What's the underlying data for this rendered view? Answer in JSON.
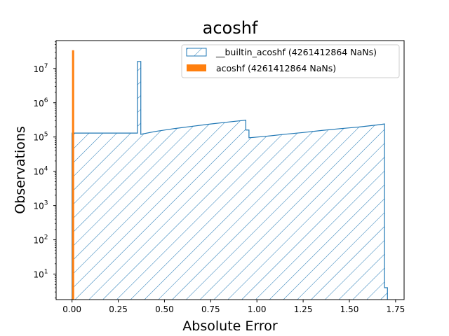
{
  "chart_data": {
    "type": "histogram",
    "title": "acoshf",
    "xlabel": "Absolute Error",
    "ylabel": "Observations",
    "yscale": "log",
    "xlim": [
      -0.086,
      1.796
    ],
    "ylim": [
      1.8,
      65000000
    ],
    "xticks": [
      "0.00",
      "0.25",
      "0.50",
      "0.75",
      "1.00",
      "1.25",
      "1.50",
      "1.75"
    ],
    "yticks": [
      {
        "exp": "1",
        "value": 10
      },
      {
        "exp": "2",
        "value": 100
      },
      {
        "exp": "3",
        "value": 1000
      },
      {
        "exp": "4",
        "value": 10000
      },
      {
        "exp": "5",
        "value": 100000
      },
      {
        "exp": "6",
        "value": 1000000
      },
      {
        "exp": "7",
        "value": 10000000
      }
    ],
    "legend_position": "top-right",
    "grid": false,
    "series": [
      {
        "name": "__builtin_acoshf (4261412864 NaNs)",
        "style": "step-hatched",
        "color": "#1f77b4",
        "points": [
          [
            0.0,
            130000
          ],
          [
            0.354,
            130000
          ],
          [
            0.354,
            16000000
          ],
          [
            0.372,
            16000000
          ],
          [
            0.372,
            120000
          ],
          [
            0.45,
            145000
          ],
          [
            0.55,
            175000
          ],
          [
            0.65,
            205000
          ],
          [
            0.75,
            240000
          ],
          [
            0.85,
            275000
          ],
          [
            0.94,
            310000
          ],
          [
            0.94,
            160000
          ],
          [
            0.957,
            160000
          ],
          [
            0.957,
            95000
          ],
          [
            1.05,
            105000
          ],
          [
            1.15,
            120000
          ],
          [
            1.25,
            135000
          ],
          [
            1.35,
            155000
          ],
          [
            1.45,
            175000
          ],
          [
            1.55,
            195000
          ],
          [
            1.65,
            225000
          ],
          [
            1.69,
            240000
          ],
          [
            1.69,
            4
          ],
          [
            1.706,
            4
          ],
          [
            1.706,
            1.8
          ]
        ]
      },
      {
        "name": "acoshf (4261412864 NaNs)",
        "style": "filled",
        "color": "#ff7f0e",
        "bins": [
          {
            "x0": 0.0,
            "x1": 0.009,
            "value": 34000000
          }
        ]
      }
    ]
  }
}
